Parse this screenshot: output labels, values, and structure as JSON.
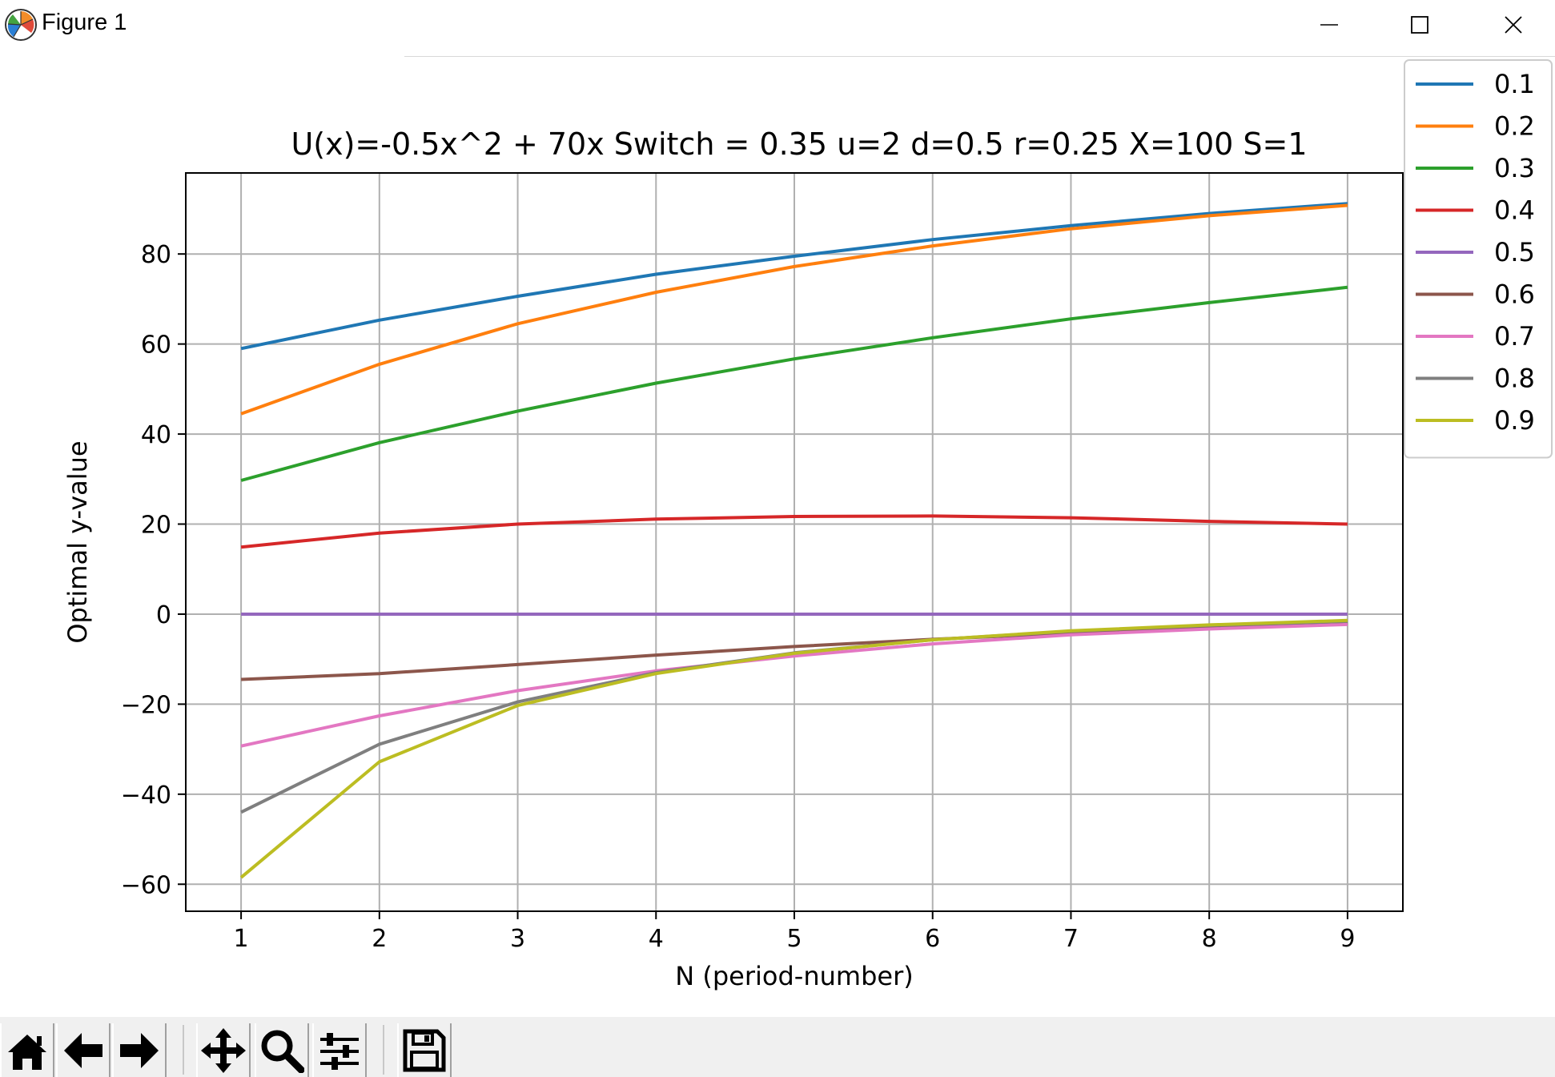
{
  "window": {
    "title": "Figure 1",
    "minimize_icon": "minimize-icon",
    "maximize_icon": "maximize-icon",
    "close_icon": "close-icon"
  },
  "toolbar": {
    "buttons": [
      {
        "name": "home-button",
        "icon": "home-icon"
      },
      {
        "name": "back-button",
        "icon": "arrow-left-icon"
      },
      {
        "name": "forward-button",
        "icon": "arrow-right-icon"
      },
      {
        "name": "pan-button",
        "icon": "move-icon"
      },
      {
        "name": "zoom-button",
        "icon": "magnifier-icon"
      },
      {
        "name": "configure-subplots-button",
        "icon": "sliders-icon"
      },
      {
        "name": "save-button",
        "icon": "floppy-disk-icon"
      }
    ]
  },
  "chart_data": {
    "type": "line",
    "title": "U(x)=-0.5x^2 + 70x  Switch = 0.35 u=2 d=0.5 r=0.25 X=100 S=1",
    "xlabel": "N (period-number)",
    "ylabel": "Optimal y-value",
    "xlim": [
      0.6,
      9.4
    ],
    "ylim": [
      -66,
      98
    ],
    "xticks": [
      1,
      2,
      3,
      4,
      5,
      6,
      7,
      8,
      9
    ],
    "yticks": [
      -60,
      -40,
      -20,
      0,
      20,
      40,
      60,
      80
    ],
    "ytick_labels": [
      "−60",
      "−40",
      "−20",
      "0",
      "20",
      "40",
      "60",
      "80"
    ],
    "grid": true,
    "legend_position": "outside-top-right",
    "x": [
      1,
      2,
      3,
      4,
      5,
      6,
      7,
      8,
      9
    ],
    "series": [
      {
        "name": "0.1",
        "color": "#1f77b4",
        "values": [
          59,
          65.3,
          70.6,
          75.5,
          79.5,
          83.2,
          86.3,
          89,
          91.2
        ]
      },
      {
        "name": "0.2",
        "color": "#ff7f0e",
        "values": [
          44.5,
          55.5,
          64.5,
          71.5,
          77.2,
          81.8,
          85.6,
          88.5,
          90.8
        ]
      },
      {
        "name": "0.3",
        "color": "#2ca02c",
        "values": [
          29.7,
          38.1,
          45.1,
          51.3,
          56.7,
          61.4,
          65.6,
          69.2,
          72.6
        ]
      },
      {
        "name": "0.4",
        "color": "#d62728",
        "values": [
          14.9,
          18,
          20,
          21.1,
          21.7,
          21.8,
          21.4,
          20.6,
          20
        ]
      },
      {
        "name": "0.5",
        "color": "#9467bd",
        "values": [
          0,
          0,
          0,
          0,
          0,
          0,
          0,
          0,
          0
        ]
      },
      {
        "name": "0.6",
        "color": "#8c564b",
        "values": [
          -14.5,
          -13.2,
          -11.2,
          -9.1,
          -7.2,
          -5.6,
          -4.2,
          -3,
          -2
        ]
      },
      {
        "name": "0.7",
        "color": "#e377c2",
        "values": [
          -29.3,
          -22.6,
          -17,
          -12.6,
          -9.3,
          -6.6,
          -4.6,
          -3.3,
          -2.3
        ]
      },
      {
        "name": "0.8",
        "color": "#7f7f7f",
        "values": [
          -44,
          -28.9,
          -19.5,
          -13,
          -8.6,
          -5.7,
          -3.8,
          -2.5,
          -1.6
        ]
      },
      {
        "name": "0.9",
        "color": "#bcbd22",
        "values": [
          -58.5,
          -32.8,
          -20.3,
          -13.2,
          -8.7,
          -5.7,
          -3.7,
          -2.4,
          -1.4
        ]
      }
    ]
  }
}
